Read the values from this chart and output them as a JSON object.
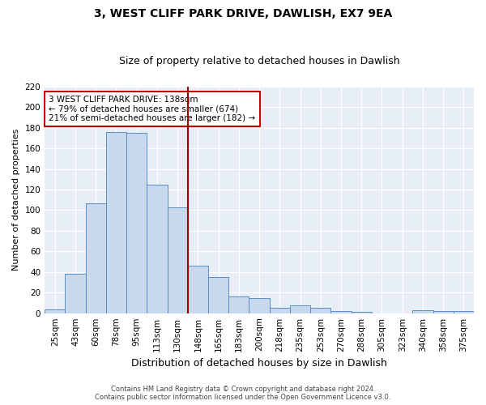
{
  "title": "3, WEST CLIFF PARK DRIVE, DAWLISH, EX7 9EA",
  "subtitle": "Size of property relative to detached houses in Dawlish",
  "xlabel": "Distribution of detached houses by size in Dawlish",
  "ylabel": "Number of detached properties",
  "bar_labels": [
    "25sqm",
    "43sqm",
    "60sqm",
    "78sqm",
    "95sqm",
    "113sqm",
    "130sqm",
    "148sqm",
    "165sqm",
    "183sqm",
    "200sqm",
    "218sqm",
    "235sqm",
    "253sqm",
    "270sqm",
    "288sqm",
    "305sqm",
    "323sqm",
    "340sqm",
    "358sqm",
    "375sqm"
  ],
  "bar_values": [
    4,
    38,
    107,
    176,
    175,
    125,
    103,
    46,
    35,
    16,
    15,
    5,
    8,
    5,
    2,
    1,
    0,
    0,
    3,
    2,
    2
  ],
  "bar_color": "#c9d9ed",
  "bar_edge_color": "#5b8dc4",
  "vline_color": "#990000",
  "annotation_text": "3 WEST CLIFF PARK DRIVE: 138sqm\n← 79% of detached houses are smaller (674)\n21% of semi-detached houses are larger (182) →",
  "annotation_box_color": "#ffffff",
  "annotation_box_edge": "#cc0000",
  "ylim": [
    0,
    220
  ],
  "yticks": [
    0,
    20,
    40,
    60,
    80,
    100,
    120,
    140,
    160,
    180,
    200,
    220
  ],
  "bg_color": "#e8eef8",
  "footer_line1": "Contains HM Land Registry data © Crown copyright and database right 2024.",
  "footer_line2": "Contains public sector information licensed under the Open Government Licence v3.0.",
  "title_fontsize": 10,
  "subtitle_fontsize": 9,
  "xlabel_fontsize": 9,
  "ylabel_fontsize": 8,
  "tick_fontsize": 7.5,
  "annot_fontsize": 7.5
}
